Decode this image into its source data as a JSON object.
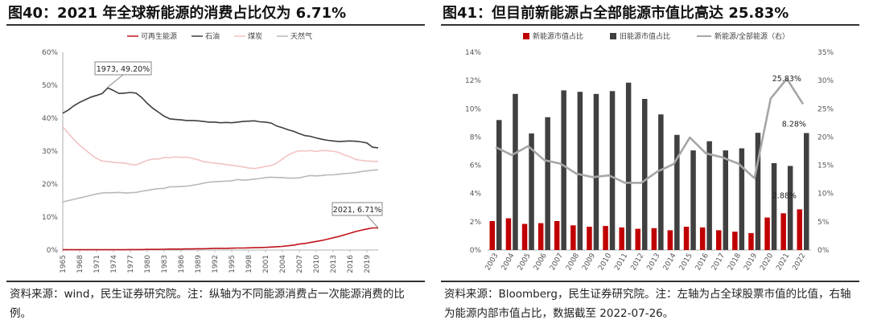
{
  "left": {
    "title": "图40：2021 年全球新能源的消费占比仅为 6.71%",
    "source": "资料来源：wind，民生证券研究院。注：纵轴为不同能源消费占一次能源消费的比例。"
  },
  "right": {
    "title": "图41：但目前新能源占全部能源市值比高达 25.83%",
    "source": "资料来源：Bloomberg，民生证券研究院。注：左轴为占全球股票市值的比值，右轴为能源内部市值占比，数据截至 2022-07-26。"
  },
  "chart_data": [
    {
      "type": "line",
      "x": [
        1965,
        1966,
        1967,
        1968,
        1969,
        1970,
        1971,
        1972,
        1973,
        1974,
        1975,
        1976,
        1977,
        1978,
        1979,
        1980,
        1981,
        1982,
        1983,
        1984,
        1985,
        1986,
        1987,
        1988,
        1989,
        1990,
        1991,
        1992,
        1993,
        1994,
        1995,
        1996,
        1997,
        1998,
        1999,
        2000,
        2001,
        2002,
        2003,
        2004,
        2005,
        2006,
        2007,
        2008,
        2009,
        2010,
        2011,
        2012,
        2013,
        2014,
        2015,
        2016,
        2017,
        2018,
        2019,
        2020,
        2021
      ],
      "xticks": [
        "1965",
        "1968",
        "1971",
        "1974",
        "1977",
        "1980",
        "1983",
        "1986",
        "1989",
        "1992",
        "1995",
        "1998",
        "2001",
        "2004",
        "2007",
        "2010",
        "2013",
        "2016",
        "2019"
      ],
      "ylim": [
        0,
        60
      ],
      "yticks": [
        "0%",
        "10%",
        "20%",
        "30%",
        "40%",
        "50%",
        "60%"
      ],
      "series": [
        {
          "name": "可再生能源",
          "color": "#c0141c",
          "values": [
            0.1,
            0.1,
            0.1,
            0.1,
            0.1,
            0.1,
            0.1,
            0.1,
            0.1,
            0.1,
            0.1,
            0.1,
            0.15,
            0.15,
            0.15,
            0.2,
            0.2,
            0.2,
            0.25,
            0.3,
            0.3,
            0.3,
            0.35,
            0.35,
            0.4,
            0.4,
            0.45,
            0.5,
            0.5,
            0.5,
            0.55,
            0.6,
            0.6,
            0.65,
            0.7,
            0.75,
            0.8,
            0.9,
            1.0,
            1.1,
            1.3,
            1.5,
            1.8,
            2.0,
            2.3,
            2.6,
            2.9,
            3.3,
            3.7,
            4.1,
            4.6,
            5.1,
            5.6,
            6.0,
            6.4,
            6.7,
            6.71
          ]
        },
        {
          "name": "石油",
          "color": "#3f3f3f",
          "values": [
            41.5,
            42.5,
            43.8,
            44.8,
            45.6,
            46.4,
            46.9,
            47.5,
            49.2,
            48.4,
            47.5,
            47.6,
            47.8,
            47.6,
            46.3,
            44.5,
            43.0,
            41.8,
            40.6,
            39.8,
            39.6,
            39.5,
            39.3,
            39.3,
            39.2,
            39.0,
            38.8,
            38.8,
            38.6,
            38.7,
            38.6,
            38.8,
            39.0,
            39.1,
            39.2,
            38.9,
            38.8,
            38.5,
            37.6,
            37.1,
            36.5,
            36.0,
            35.3,
            34.7,
            34.5,
            34.0,
            33.6,
            33.3,
            33.1,
            32.9,
            33.0,
            33.1,
            33.0,
            32.8,
            32.5,
            31.2,
            31.0
          ]
        },
        {
          "name": "煤炭",
          "color": "#f2c3c3",
          "values": [
            37.4,
            35.4,
            33.5,
            31.8,
            30.4,
            29.0,
            27.8,
            27.0,
            26.8,
            26.6,
            26.5,
            26.4,
            26.0,
            25.8,
            26.5,
            27.2,
            27.6,
            27.6,
            28.1,
            28.0,
            28.3,
            28.1,
            28.2,
            27.8,
            27.4,
            26.8,
            26.6,
            26.3,
            26.2,
            25.9,
            25.7,
            25.5,
            25.2,
            24.9,
            24.7,
            25.0,
            25.4,
            25.6,
            26.4,
            27.6,
            28.8,
            29.6,
            30.1,
            30.0,
            30.2,
            29.9,
            30.2,
            30.1,
            30.0,
            29.6,
            28.8,
            28.3,
            27.5,
            27.2,
            27.0,
            26.9,
            26.9
          ]
        },
        {
          "name": "天然气",
          "color": "#b9b9b9",
          "values": [
            14.6,
            15.0,
            15.4,
            15.8,
            16.2,
            16.6,
            17.0,
            17.3,
            17.4,
            17.4,
            17.5,
            17.3,
            17.4,
            17.5,
            17.8,
            18.1,
            18.4,
            18.6,
            18.7,
            19.2,
            19.2,
            19.3,
            19.4,
            19.6,
            19.9,
            20.3,
            20.6,
            20.7,
            20.8,
            20.9,
            21.0,
            21.4,
            21.2,
            21.3,
            21.5,
            21.7,
            22.0,
            22.1,
            22.0,
            22.0,
            21.8,
            21.8,
            21.9,
            22.3,
            22.6,
            22.5,
            22.6,
            22.8,
            22.8,
            23.0,
            23.2,
            23.3,
            23.5,
            23.8,
            24.0,
            24.2,
            24.4
          ]
        }
      ],
      "annotations": [
        {
          "text": "1973, 49.20%",
          "x": 1973,
          "y": 49.2
        },
        {
          "text": "2021, 6.71%",
          "x": 2021,
          "y": 6.71
        }
      ]
    },
    {
      "type": "bar",
      "categories": [
        "2003",
        "2004",
        "2005",
        "2006",
        "2007",
        "2008",
        "2009",
        "2010",
        "2011",
        "2012",
        "2013",
        "2014",
        "2015",
        "2016",
        "2017",
        "2018",
        "2019",
        "2020",
        "2021",
        "2022"
      ],
      "ylim_left": [
        0,
        14
      ],
      "ylim_right": [
        0,
        35
      ],
      "yticks_left": [
        "0%",
        "2%",
        "4%",
        "6%",
        "8%",
        "10%",
        "12%",
        "14%"
      ],
      "yticks_right": [
        "0%",
        "5%",
        "10%",
        "15%",
        "20%",
        "25%",
        "30%",
        "35%"
      ],
      "series": [
        {
          "name": "新能源市值占比",
          "color": "#c00000",
          "axis": "left",
          "values": [
            2.05,
            2.25,
            1.85,
            1.9,
            2.05,
            1.75,
            1.65,
            1.7,
            1.6,
            1.5,
            1.55,
            1.4,
            1.65,
            1.6,
            1.4,
            1.3,
            1.2,
            2.3,
            2.6,
            2.88
          ]
        },
        {
          "name": "旧能源市值占比",
          "color": "#404040",
          "axis": "left",
          "values": [
            9.2,
            11.05,
            8.25,
            9.4,
            11.3,
            11.2,
            11.05,
            11.25,
            11.85,
            10.7,
            9.6,
            8.15,
            7.05,
            7.7,
            7.05,
            7.2,
            8.3,
            6.15,
            5.95,
            8.28
          ]
        },
        {
          "name": "新能源/全部能源（右）",
          "color": "#a6a6a6",
          "axis": "right",
          "type": "line",
          "values": [
            18.2,
            16.8,
            18.4,
            15.9,
            15.3,
            13.5,
            12.9,
            13.2,
            11.9,
            11.9,
            13.9,
            15.2,
            19.9,
            17.1,
            16.4,
            15.3,
            12.7,
            26.8,
            30.3,
            25.83
          ]
        }
      ],
      "annotations": [
        {
          "text": "25.83%",
          "x": "2022",
          "y": 25.83,
          "axis": "right"
        },
        {
          "text": "8.28%",
          "x": "2022",
          "y": 8.28,
          "axis": "left"
        },
        {
          "text": "2.88%",
          "x": "2022",
          "y": 2.88,
          "axis": "left"
        }
      ]
    }
  ]
}
